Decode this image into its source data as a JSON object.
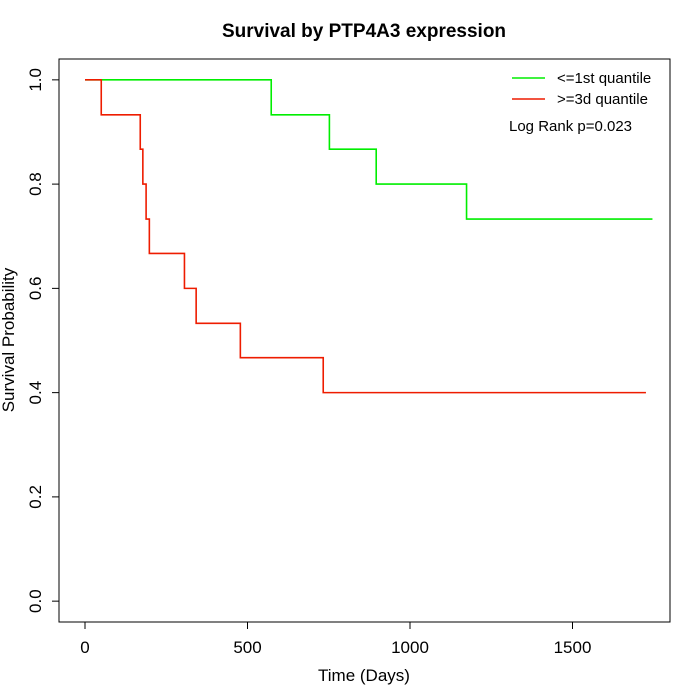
{
  "chart_data": {
    "type": "line",
    "title": "Survival by PTP4A3 expression",
    "xlabel": "Time (Days)",
    "ylabel": "Survival Probability",
    "xlim": [
      -80,
      1800
    ],
    "ylim": [
      -0.04,
      1.04
    ],
    "xticks": [
      0,
      500,
      1000,
      1500
    ],
    "yticks": [
      0.0,
      0.2,
      0.4,
      0.6,
      0.8,
      1.0
    ],
    "xtick_labels": [
      "0",
      "500",
      "1000",
      "1500"
    ],
    "ytick_labels": [
      "0.0",
      "0.2",
      "0.4",
      "0.6",
      "0.8",
      "1.0"
    ],
    "grid": false,
    "legend_position": "top-right",
    "annotation": "Log Rank p=0.023",
    "series": [
      {
        "name": "<=1st quantile",
        "color": "#00ee00",
        "step": true,
        "x": [
          0,
          573,
          752,
          896,
          1174,
          1746
        ],
        "y": [
          1.0,
          0.933,
          0.867,
          0.8,
          0.733,
          0.733
        ]
      },
      {
        "name": ">=3d quantile",
        "color": "#ee1c00",
        "step": true,
        "x": [
          0,
          50,
          170,
          178,
          188,
          198,
          306,
          342,
          478,
          733,
          1726
        ],
        "y": [
          1.0,
          0.933,
          0.867,
          0.8,
          0.733,
          0.667,
          0.6,
          0.533,
          0.467,
          0.4,
          0.4
        ]
      }
    ]
  }
}
